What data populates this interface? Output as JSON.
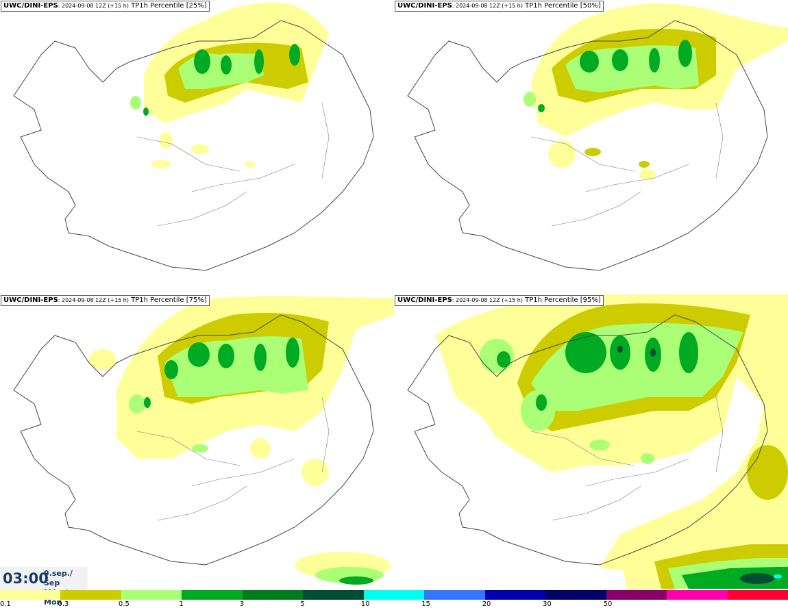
{
  "panels": [
    {
      "source": "UWC/DINI-EPS",
      "run": ": 2024-09-08 12Z (+15 h)",
      "title": "TP1h Percentile [25%]"
    },
    {
      "source": "UWC/DINI-EPS",
      "run": ": 2024-09-08 12Z (+15 h)",
      "title": "TP1h Percentile [50%]"
    },
    {
      "source": "UWC/DINI-EPS",
      "run": ": 2024-09-08 12Z (+15 h)",
      "title": "TP1h Percentile [75%]"
    },
    {
      "source": "UWC/DINI-EPS",
      "run": ": 2024-09-08 12Z (+15 h)",
      "title": "TP1h Percentile [95%]"
    }
  ],
  "valid_time": {
    "time": "03:00",
    "date_line1": "9.sep./ Sep",
    "date_line2": "Mán./ Mon"
  },
  "legend": {
    "colors": [
      "#ffff99",
      "#cccc00",
      "#aaff77",
      "#00aa22",
      "#007a1a",
      "#004d33",
      "#00ffee",
      "#3377ff",
      "#0000aa",
      "#000066",
      "#880066",
      "#ff00aa",
      "#ff0033"
    ],
    "ticks": [
      "0.1",
      "0.3",
      "0.5",
      "1",
      "3",
      "5",
      "10",
      "15",
      "20",
      "30",
      "50"
    ]
  },
  "colors": {
    "light_yellow": "#ffff99",
    "olive": "#cccc00",
    "light_green": "#aaff77",
    "green": "#00aa22",
    "dark_green": "#007a1a",
    "coast": "#444444"
  }
}
